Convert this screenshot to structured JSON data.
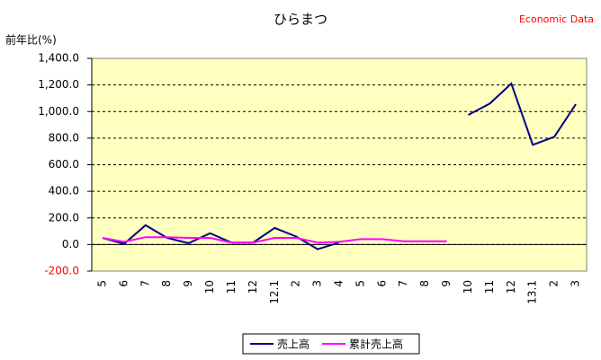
{
  "chart_data": {
    "type": "line",
    "title": "ひらまつ",
    "source": "Economic Data",
    "y_label": "前年比(%)",
    "categories": [
      "5",
      "6",
      "7",
      "8",
      "9",
      "10",
      "11",
      "12",
      "12.1",
      "2",
      "3",
      "4",
      "5",
      "6",
      "7",
      "8",
      "9",
      "10",
      "11",
      "12",
      "13.1",
      "2",
      "3"
    ],
    "series": [
      {
        "name": "売上高",
        "color": "#000080",
        "values": [
          50,
          5,
          145,
          50,
          10,
          85,
          15,
          15,
          125,
          60,
          -35,
          15,
          null,
          null,
          null,
          null,
          null,
          975,
          1060,
          1210,
          750,
          810,
          1055
        ]
      },
      {
        "name": "累計売上高",
        "color": "#ff00ff",
        "values": [
          50,
          20,
          55,
          55,
          50,
          50,
          15,
          15,
          50,
          50,
          15,
          20,
          40,
          40,
          25,
          25,
          25,
          null,
          null,
          null,
          null,
          null,
          null
        ]
      }
    ],
    "ylim": [
      -200,
      1400
    ],
    "yticks": [
      {
        "value": -200,
        "label": "-200.0"
      },
      {
        "value": 0,
        "label": "0.0"
      },
      {
        "value": 200,
        "label": "200.0"
      },
      {
        "value": 400,
        "label": "400.0"
      },
      {
        "value": 600,
        "label": "600.0"
      },
      {
        "value": 800,
        "label": "800.0"
      },
      {
        "value": 1000,
        "label": "1,000.0"
      },
      {
        "value": 1200,
        "label": "1,200.0"
      },
      {
        "value": 1400,
        "label": "1,400.0"
      }
    ],
    "negative_tick_color": "#ff0000",
    "source_color": "#ff0000",
    "plot_background": "#ffffc0",
    "grid": true,
    "legend": "bottom"
  }
}
